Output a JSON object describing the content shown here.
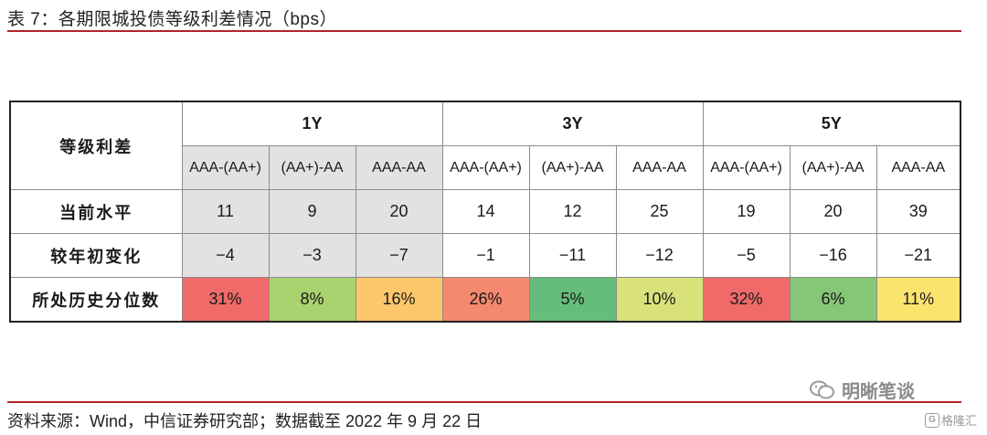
{
  "title": "表 7：各期限城投债等级利差情况（bps）",
  "footnote": "资料来源：Wind，中信证券研究部；数据截至 2022 年 9 月 22 日",
  "watermark": "明晰笔谈",
  "logo_text": "格隆汇",
  "table": {
    "corner_label": "等级利差",
    "periods": [
      "1Y",
      "3Y",
      "5Y"
    ],
    "sub_headers": [
      "AAA-(AA+)",
      "(AA+)-AA",
      "AAA-AA",
      "AAA-(AA+)",
      "(AA+)-AA",
      "AAA-AA",
      "AAA-(AA+)",
      "(AA+)-AA",
      "AAA-AA"
    ],
    "rows": [
      {
        "label": "当前水平",
        "values": [
          "11",
          "9",
          "20",
          "14",
          "12",
          "25",
          "19",
          "20",
          "39"
        ]
      },
      {
        "label": "较年初变化",
        "values": [
          "−4",
          "−3",
          "−7",
          "−1",
          "−11",
          "−12",
          "−5",
          "−16",
          "−21"
        ]
      },
      {
        "label": "所处历史分位数",
        "values": [
          "31%",
          "8%",
          "16%",
          "26%",
          "5%",
          "10%",
          "32%",
          "6%",
          "11%"
        ]
      }
    ],
    "percentile_colors": [
      "#f06a6a",
      "#a9d36e",
      "#fdc66b",
      "#f4896f",
      "#64bd7b",
      "#d9e27a",
      "#f06a6a",
      "#86c677",
      "#fbe46e"
    ],
    "highlight_color": "#e2e2e2"
  }
}
